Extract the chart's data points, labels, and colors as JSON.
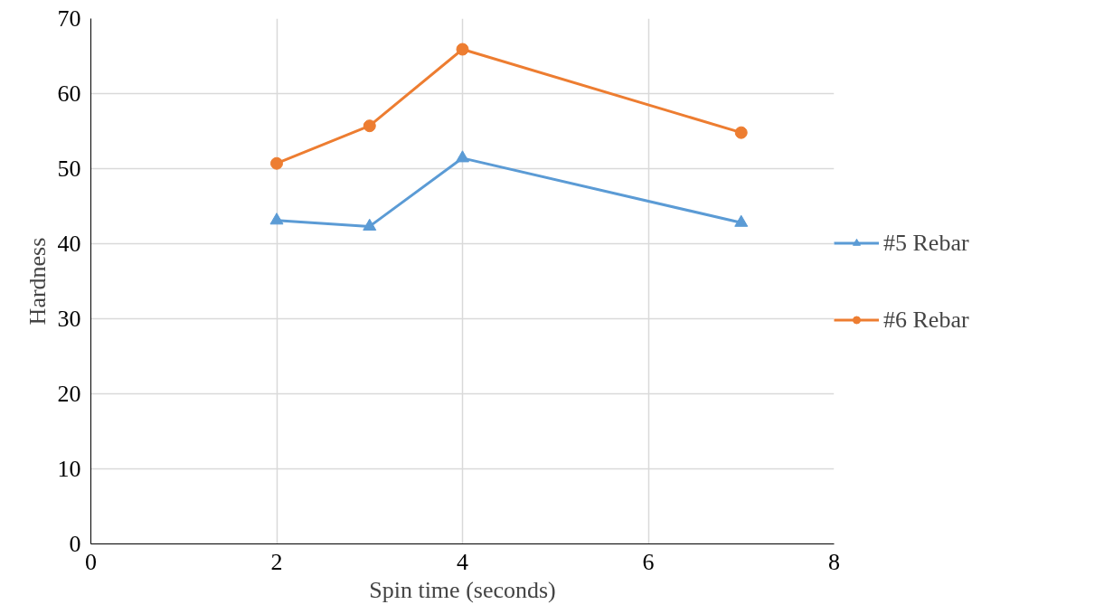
{
  "chart_data": {
    "type": "line",
    "xlabel": "Spin time (seconds)",
    "ylabel": "Hardness",
    "xlim": [
      0,
      8
    ],
    "xticks": [
      0,
      2,
      4,
      6,
      8
    ],
    "ylim": [
      0,
      70
    ],
    "yticks": [
      0,
      10,
      20,
      30,
      40,
      50,
      60,
      70
    ],
    "grid": true,
    "legend": "right",
    "line_style": "solid",
    "series": [
      {
        "name": "#5 Rebar",
        "color": "#5b9bd5",
        "marker": "triangle",
        "x": [
          2,
          3,
          4,
          7
        ],
        "values": [
          43.1,
          42.3,
          51.4,
          42.8
        ]
      },
      {
        "name": "#6 Rebar",
        "color": "#ed7d31",
        "marker": "circle",
        "x": [
          2,
          3,
          4,
          7
        ],
        "values": [
          50.7,
          55.7,
          65.9,
          54.8
        ]
      }
    ]
  }
}
